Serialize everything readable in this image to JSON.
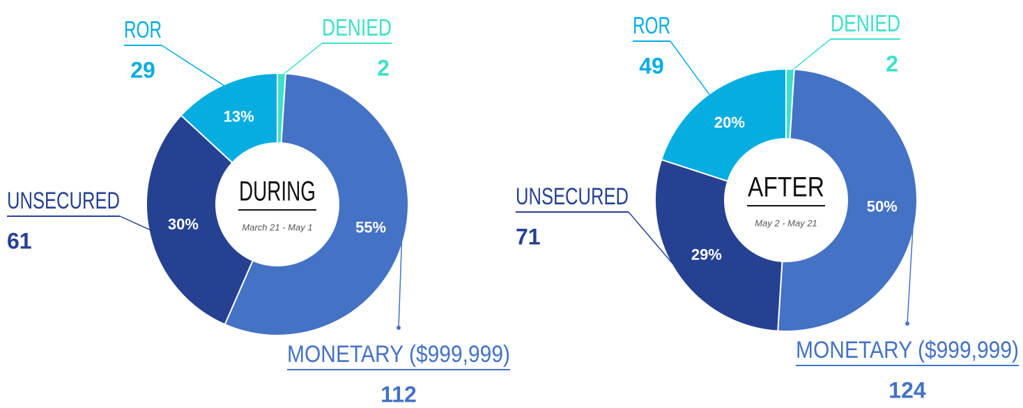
{
  "chart_data": [
    {
      "type": "pie",
      "title": "DURING",
      "subtitle": "March 21 - May 1",
      "categories": [
        "DENIED",
        "MONETARY ($999,999)",
        "UNSECURED",
        "ROR"
      ],
      "values": [
        1,
        55,
        30,
        13
      ],
      "value_labels": [
        "1%",
        "55%",
        "30%",
        "13%"
      ],
      "counts": [
        2,
        112,
        61,
        29
      ],
      "colors": [
        "#3de0c8",
        "#4472c4",
        "#264191",
        "#05ade0"
      ]
    },
    {
      "type": "pie",
      "title": "AFTER",
      "subtitle": "May 2 - May 21",
      "categories": [
        "DENIED",
        "MONETARY ($999,999)",
        "UNSECURED",
        "ROR"
      ],
      "values": [
        1,
        50,
        29,
        20
      ],
      "value_labels": [
        "1%",
        "50%",
        "29%",
        "20%"
      ],
      "counts": [
        2,
        124,
        71,
        49
      ],
      "colors": [
        "#3de0c8",
        "#4472c4",
        "#264191",
        "#05ade0"
      ]
    }
  ]
}
